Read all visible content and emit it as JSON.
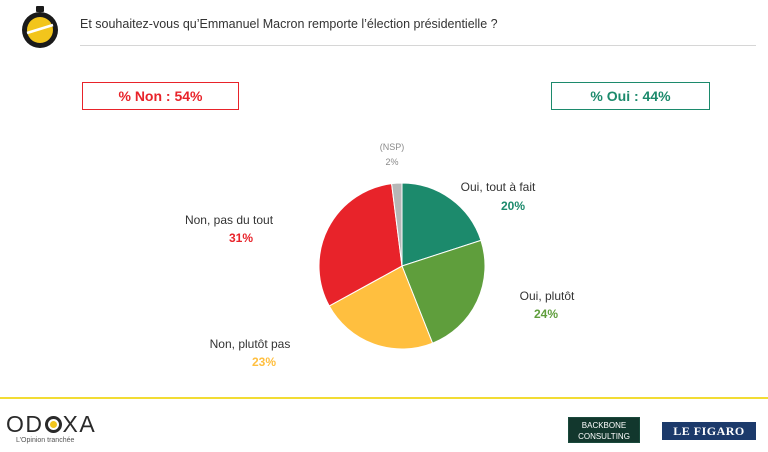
{
  "header": {
    "question": "Et souhaitez-vous qu’Emmanuel Macron remporte l’élection présidentielle ?"
  },
  "summary": {
    "non_label": "% Non : 54%",
    "oui_label": "% Oui : 44%"
  },
  "colors": {
    "oui_tout_a_fait": "#1c8a6c",
    "oui_plutot": "#5f9e3c",
    "non_plutot_pas": "#ffbf3f",
    "non_pas_du_tout": "#e8232a",
    "nsp": "#b7b7b7",
    "accent_yellow": "#f2dc34"
  },
  "chart_data": {
    "type": "pie",
    "title": "",
    "start": "top, clockwise",
    "slices": [
      {
        "label": "Oui, tout à fait",
        "value": 20,
        "display": "20%"
      },
      {
        "label": "Oui, plutôt",
        "value": 24,
        "display": "24%"
      },
      {
        "label": "Non, plutôt pas",
        "value": 23,
        "display": "23%"
      },
      {
        "label": "Non, pas du tout",
        "value": 31,
        "display": "31%"
      },
      {
        "label": "(NSP)",
        "value": 2,
        "display": "2%"
      }
    ]
  },
  "footer": {
    "brand_left": "ODOXA",
    "tagline": "L’Opinion tranchée",
    "partner_1": "BACKBONE\nCONSULTING",
    "partner_2": "LE FIGARO"
  }
}
